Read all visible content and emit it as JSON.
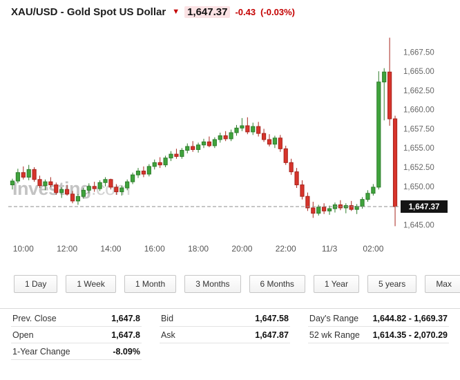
{
  "header": {
    "title": "XAU/USD - Gold Spot US Dollar",
    "last_price": "1,647.37",
    "change": "-0.43",
    "change_percent": "(-0.03%)"
  },
  "icons": {
    "price_direction_down": "▼"
  },
  "colors": {
    "negative_red": "#c40000",
    "price_flash_bg": "#fbe2e4"
  },
  "chart_data": {
    "type": "candlestick",
    "watermark_main": "Investing",
    "watermark_suffix": ".com",
    "ylim": [
      1643.5,
      1670.5
    ],
    "grid": "off",
    "y_ticks": [
      {
        "value": 1667.5,
        "label": "1,667.50"
      },
      {
        "value": 1665.0,
        "label": "1,665.00"
      },
      {
        "value": 1662.5,
        "label": "1,662.50"
      },
      {
        "value": 1660.0,
        "label": "1,660.00"
      },
      {
        "value": 1657.5,
        "label": "1,657.50"
      },
      {
        "value": 1655.0,
        "label": "1,655.00"
      },
      {
        "value": 1652.5,
        "label": "1,652.50"
      },
      {
        "value": 1650.0,
        "label": "1,650.00"
      },
      {
        "value": 1645.0,
        "label": "1,645.00"
      }
    ],
    "x_ticks": [
      {
        "index": 2,
        "label": "10:00"
      },
      {
        "index": 10,
        "label": "12:00"
      },
      {
        "index": 18,
        "label": "14:00"
      },
      {
        "index": 26,
        "label": "16:00"
      },
      {
        "index": 34,
        "label": "18:00"
      },
      {
        "index": 42,
        "label": "20:00"
      },
      {
        "index": 50,
        "label": "22:00"
      },
      {
        "index": 58,
        "label": "11/3"
      },
      {
        "index": 66,
        "label": "02:00"
      }
    ],
    "price_line": {
      "value": 1647.37,
      "label": "1,647.37"
    },
    "colors": {
      "up": "#3fa33c",
      "up_stroke": "#2e7d2b",
      "down": "#d7342b",
      "down_stroke": "#a7231c",
      "badge_bg": "#151515",
      "dashed_line": "#8c8c8c"
    },
    "candles": [
      [
        1650.2,
        1651.0,
        1649.6,
        1650.7
      ],
      [
        1650.7,
        1652.3,
        1650.4,
        1651.8
      ],
      [
        1651.8,
        1652.6,
        1650.9,
        1651.2
      ],
      [
        1651.2,
        1652.8,
        1650.8,
        1652.2
      ],
      [
        1652.2,
        1652.5,
        1650.6,
        1650.9
      ],
      [
        1650.9,
        1651.4,
        1649.8,
        1650.1
      ],
      [
        1650.1,
        1650.9,
        1649.5,
        1650.6
      ],
      [
        1650.6,
        1651.2,
        1649.9,
        1650.2
      ],
      [
        1650.2,
        1650.5,
        1648.9,
        1649.2
      ],
      [
        1649.2,
        1649.9,
        1648.5,
        1649.6
      ],
      [
        1649.6,
        1650.2,
        1648.8,
        1649.0
      ],
      [
        1649.0,
        1649.4,
        1647.8,
        1648.1
      ],
      [
        1648.1,
        1649.0,
        1647.6,
        1648.7
      ],
      [
        1648.7,
        1649.8,
        1648.4,
        1649.5
      ],
      [
        1649.5,
        1650.4,
        1649.1,
        1650.0
      ],
      [
        1650.0,
        1650.6,
        1649.3,
        1649.7
      ],
      [
        1649.7,
        1650.8,
        1649.4,
        1650.5
      ],
      [
        1650.5,
        1651.2,
        1650.0,
        1650.9
      ],
      [
        1650.9,
        1651.0,
        1649.6,
        1649.9
      ],
      [
        1649.9,
        1650.3,
        1648.9,
        1649.3
      ],
      [
        1649.3,
        1650.1,
        1648.8,
        1649.8
      ],
      [
        1649.8,
        1650.9,
        1649.5,
        1650.6
      ],
      [
        1650.6,
        1651.8,
        1650.3,
        1651.5
      ],
      [
        1651.5,
        1652.4,
        1651.1,
        1652.0
      ],
      [
        1652.0,
        1652.6,
        1651.2,
        1651.6
      ],
      [
        1651.6,
        1652.9,
        1651.3,
        1652.6
      ],
      [
        1652.6,
        1653.5,
        1652.2,
        1653.1
      ],
      [
        1653.1,
        1653.8,
        1652.4,
        1652.8
      ],
      [
        1652.8,
        1654.0,
        1652.5,
        1653.7
      ],
      [
        1653.7,
        1654.6,
        1653.3,
        1654.2
      ],
      [
        1654.2,
        1654.9,
        1653.6,
        1653.9
      ],
      [
        1653.9,
        1655.0,
        1653.6,
        1654.7
      ],
      [
        1654.7,
        1655.6,
        1654.3,
        1655.2
      ],
      [
        1655.2,
        1655.9,
        1654.5,
        1654.8
      ],
      [
        1654.8,
        1655.7,
        1654.4,
        1655.4
      ],
      [
        1655.4,
        1656.2,
        1655.0,
        1655.8
      ],
      [
        1655.8,
        1656.5,
        1655.1,
        1655.3
      ],
      [
        1655.3,
        1656.4,
        1655.0,
        1656.1
      ],
      [
        1656.1,
        1657.0,
        1655.7,
        1656.6
      ],
      [
        1656.6,
        1657.2,
        1655.9,
        1656.2
      ],
      [
        1656.2,
        1657.4,
        1655.9,
        1657.0
      ],
      [
        1657.0,
        1658.0,
        1656.6,
        1657.6
      ],
      [
        1657.6,
        1658.9,
        1657.2,
        1657.9
      ],
      [
        1657.9,
        1659.0,
        1656.8,
        1657.1
      ],
      [
        1657.1,
        1658.3,
        1656.7,
        1657.8
      ],
      [
        1657.8,
        1658.4,
        1656.5,
        1656.9
      ],
      [
        1656.9,
        1657.5,
        1655.8,
        1656.1
      ],
      [
        1656.1,
        1656.8,
        1655.2,
        1655.5
      ],
      [
        1655.5,
        1656.6,
        1655.0,
        1656.3
      ],
      [
        1656.3,
        1656.7,
        1654.5,
        1654.9
      ],
      [
        1654.9,
        1655.3,
        1652.8,
        1653.1
      ],
      [
        1653.1,
        1653.6,
        1651.5,
        1651.9
      ],
      [
        1651.9,
        1652.4,
        1649.8,
        1650.2
      ],
      [
        1650.2,
        1650.8,
        1648.3,
        1648.7
      ],
      [
        1648.7,
        1649.2,
        1646.8,
        1647.2
      ],
      [
        1647.2,
        1648.0,
        1645.9,
        1646.5
      ],
      [
        1646.5,
        1647.6,
        1646.2,
        1647.3
      ],
      [
        1647.3,
        1647.8,
        1646.4,
        1646.8
      ],
      [
        1646.8,
        1647.5,
        1646.3,
        1647.1
      ],
      [
        1647.1,
        1647.9,
        1646.6,
        1647.6
      ],
      [
        1647.6,
        1648.2,
        1646.9,
        1647.2
      ],
      [
        1647.2,
        1647.8,
        1646.5,
        1647.5
      ],
      [
        1647.5,
        1648.1,
        1646.8,
        1647.0
      ],
      [
        1647.0,
        1647.7,
        1646.4,
        1647.4
      ],
      [
        1647.4,
        1648.6,
        1647.1,
        1648.3
      ],
      [
        1648.3,
        1649.5,
        1648.0,
        1649.1
      ],
      [
        1649.1,
        1650.3,
        1648.8,
        1649.9
      ],
      [
        1649.9,
        1665.0,
        1649.6,
        1663.6
      ],
      [
        1663.6,
        1665.4,
        1658.6,
        1664.9
      ],
      [
        1664.9,
        1669.37,
        1657.9,
        1658.8
      ],
      [
        1658.8,
        1659.2,
        1644.82,
        1647.37
      ]
    ]
  },
  "range_buttons": [
    "1 Day",
    "1 Week",
    "1 Month",
    "3 Months",
    "6 Months",
    "1 Year",
    "5 years",
    "Max"
  ],
  "stats": {
    "rows": [
      [
        {
          "label": "Prev. Close",
          "value": "1,647.8"
        },
        {
          "label": "Bid",
          "value": "1,647.58"
        },
        {
          "label": "Day's Range",
          "value": "1,644.82 - 1,669.37"
        }
      ],
      [
        {
          "label": "Open",
          "value": "1,647.8"
        },
        {
          "label": "Ask",
          "value": "1,647.87"
        },
        {
          "label": "52 wk Range",
          "value": "1,614.35 - 2,070.29"
        }
      ],
      [
        {
          "label": "1-Year Change",
          "value": "-8.09%"
        }
      ]
    ]
  }
}
